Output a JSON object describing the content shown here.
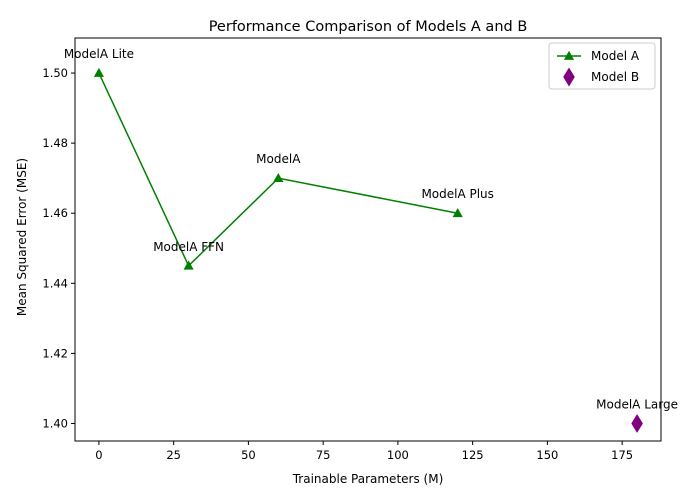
{
  "chart_data": {
    "type": "line",
    "title": "Performance Comparison of Models A and B",
    "xlabel": "Trainable Parameters (M)",
    "ylabel": "Mean Squared Error (MSE)",
    "xlim": [
      -8,
      188
    ],
    "ylim": [
      1.395,
      1.51
    ],
    "xticks": [
      0,
      25,
      50,
      75,
      100,
      125,
      150,
      175
    ],
    "yticks": [
      1.4,
      1.42,
      1.44,
      1.46,
      1.48,
      1.5
    ],
    "grid": false,
    "legend_position": "top-right",
    "series": [
      {
        "name": "Model A",
        "marker": "triangle",
        "line": true,
        "color": "#008000",
        "points": [
          {
            "x": 0,
            "y": 1.5,
            "label": "ModelA Lite"
          },
          {
            "x": 30,
            "y": 1.445,
            "label": "ModelA FFN"
          },
          {
            "x": 60,
            "y": 1.47,
            "label": "ModelA"
          },
          {
            "x": 120,
            "y": 1.46,
            "label": "ModelA Plus"
          }
        ]
      },
      {
        "name": "Model B",
        "marker": "diamond",
        "line": false,
        "color": "#800080",
        "points": [
          {
            "x": 180,
            "y": 1.4,
            "label": "ModelA Large"
          }
        ]
      }
    ]
  }
}
